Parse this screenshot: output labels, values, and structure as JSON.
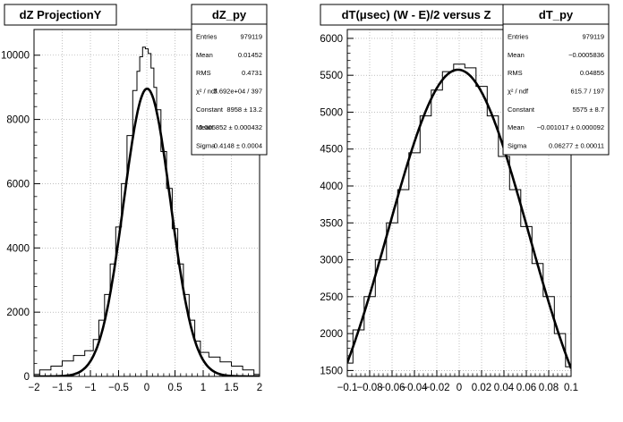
{
  "chart_data": [
    {
      "type": "line",
      "title": "dZ ProjectionY",
      "xlim": [
        -2,
        2
      ],
      "ylim": [
        0,
        10800
      ],
      "x_ticks": [
        -2,
        -1.5,
        -1,
        -0.5,
        0,
        0.5,
        1,
        1.5,
        2
      ],
      "x_tick_labels": [
        "−2",
        "−1.5",
        "−1",
        "−0.5",
        "0",
        "0.5",
        "1",
        "1.5",
        "2"
      ],
      "y_ticks": [
        0,
        2000,
        4000,
        6000,
        8000,
        10000
      ],
      "y_tick_labels": [
        "0",
        "2000",
        "4000",
        "6000",
        "8000",
        "10000"
      ],
      "series": [
        {
          "kind": "histogram",
          "x": [
            -2.0,
            -1.8,
            -1.6,
            -1.4,
            -1.2,
            -1.0,
            -0.9,
            -0.8,
            -0.7,
            -0.6,
            -0.5,
            -0.4,
            -0.3,
            -0.2,
            -0.15,
            -0.1,
            -0.05,
            0.0,
            0.05,
            0.1,
            0.15,
            0.2,
            0.3,
            0.4,
            0.5,
            0.6,
            0.7,
            0.8,
            0.9,
            1.0,
            1.2,
            1.4,
            1.6,
            1.8,
            2.0
          ],
          "y": [
            60,
            200,
            320,
            480,
            650,
            800,
            1150,
            1750,
            2550,
            3500,
            4650,
            6000,
            7500,
            8900,
            9500,
            9950,
            10250,
            10200,
            10050,
            9600,
            9000,
            8300,
            7000,
            5850,
            4600,
            3500,
            2550,
            1750,
            1100,
            750,
            600,
            450,
            320,
            200,
            60
          ]
        },
        {
          "kind": "gaussian-fit",
          "constant": 8958,
          "mean": 0.005852,
          "sigma": 0.4148
        }
      ],
      "stats": {
        "name": "dZ_py",
        "rows": [
          {
            "label": "Entries",
            "value": "979119"
          },
          {
            "label": "Mean",
            "value": "0.01452"
          },
          {
            "label": "RMS",
            "value": "0.4731"
          },
          {
            "label": "χ² / ndf",
            "value": "3.692e+04 / 397"
          },
          {
            "label": "Constant",
            "value": "8958 ± 13.2"
          },
          {
            "label": "Mean",
            "value": "0.005852 ± 0.000432"
          },
          {
            "label": "Sigma",
            "value": "0.4148 ± 0.0004"
          }
        ]
      }
    },
    {
      "type": "line",
      "title": "dT(μsec) (W - E)/2 versus Z",
      "xlim": [
        -0.1,
        0.1
      ],
      "ylim": [
        1420,
        6120
      ],
      "x_ticks": [
        -0.1,
        -0.08,
        -0.06,
        -0.04,
        -0.02,
        0,
        0.02,
        0.04,
        0.06,
        0.08,
        0.1
      ],
      "x_tick_labels": [
        "−0.1",
        "−0.08",
        "−0.06",
        "−0.04",
        "−0.02",
        "0",
        "0.02",
        "0.04",
        "0.06",
        "0.08",
        "0.1"
      ],
      "y_ticks": [
        1500,
        2000,
        2500,
        3000,
        3500,
        4000,
        4500,
        5000,
        5500,
        6000
      ],
      "y_tick_labels": [
        "1500",
        "2000",
        "2500",
        "3000",
        "3500",
        "4000",
        "4500",
        "5000",
        "5500",
        "6000"
      ],
      "series": [
        {
          "kind": "histogram",
          "x": [
            -0.1,
            -0.09,
            -0.08,
            -0.07,
            -0.06,
            -0.05,
            -0.04,
            -0.03,
            -0.02,
            -0.01,
            0.0,
            0.01,
            0.02,
            0.03,
            0.04,
            0.05,
            0.06,
            0.07,
            0.08,
            0.09,
            0.1
          ],
          "y": [
            1600,
            2050,
            2500,
            3000,
            3500,
            3950,
            4450,
            4950,
            5300,
            5550,
            5650,
            5600,
            5350,
            4950,
            4400,
            3950,
            3450,
            2950,
            2500,
            2000,
            1550
          ]
        },
        {
          "kind": "gaussian-fit",
          "constant": 5575,
          "mean": -0.001017,
          "sigma": 0.06277
        }
      ],
      "stats": {
        "name": "dT_py",
        "rows": [
          {
            "label": "Entries",
            "value": "979119"
          },
          {
            "label": "Mean",
            "value": "−0.0005836"
          },
          {
            "label": "RMS",
            "value": "0.04855"
          },
          {
            "label": "χ² / ndf",
            "value": "615.7 / 197"
          },
          {
            "label": "Constant",
            "value": "5575 ± 8.7"
          },
          {
            "label": "Mean",
            "value": "−0.001017 ± 0.000092"
          },
          {
            "label": "Sigma",
            "value": "0.06277 ± 0.00011"
          }
        ]
      }
    }
  ]
}
